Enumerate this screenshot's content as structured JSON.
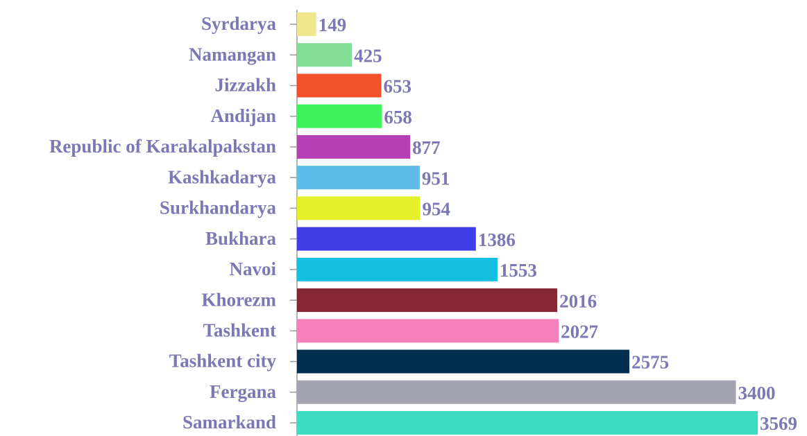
{
  "chart_data": {
    "type": "bar",
    "orientation": "horizontal",
    "categories": [
      "Syrdarya",
      "Namangan",
      "Jizzakh",
      "Andijan",
      "Republic of Karakalpakstan",
      "Kashkadarya",
      "Surkhandarya",
      "Bukhara",
      "Navoi",
      "Khorezm",
      "Tashkent",
      "Tashkent city",
      "Fergana",
      "Samarkand"
    ],
    "values": [
      149,
      425,
      653,
      658,
      877,
      951,
      954,
      1386,
      1553,
      2016,
      2027,
      2575,
      3400,
      3569
    ],
    "colors": [
      "#f0e68c",
      "#82dd95",
      "#f4502a",
      "#3bf25a",
      "#b53fb5",
      "#5fbbe9",
      "#e4f02a",
      "#3f3de8",
      "#14bfe0",
      "#852834",
      "#f580bc",
      "#002e4e",
      "#a4a3b1",
      "#3cdcc4"
    ],
    "label_color": "#7b78b3"
  }
}
